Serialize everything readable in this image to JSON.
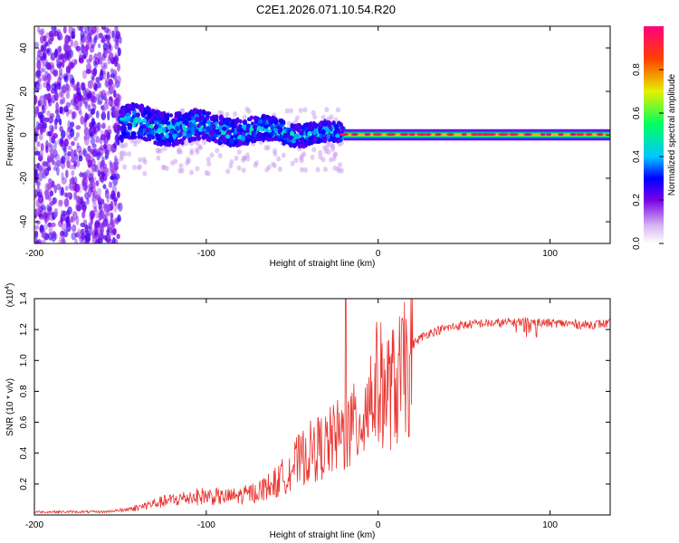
{
  "title": "C2E1.2026.071.10.54.R20",
  "colors": {
    "snr_line": "#e8332e",
    "axis": "#000000",
    "background": "#ffffff"
  },
  "chart_data": [
    {
      "type": "heatmap",
      "name": "spectrogram",
      "xlabel": "Height of straight line (km)",
      "ylabel": "Frequency (Hz)",
      "xlim": [
        -200,
        135
      ],
      "ylim": [
        -50,
        50
      ],
      "xticks": [
        {
          "value": -200,
          "label": "-200"
        },
        {
          "value": -100,
          "label": "-100"
        },
        {
          "value": 0,
          "label": "0"
        },
        {
          "value": 100,
          "label": "100"
        }
      ],
      "yticks": [
        {
          "value": -40,
          "label": "-40"
        },
        {
          "value": -20,
          "label": "-20"
        },
        {
          "value": 0,
          "label": "0"
        },
        {
          "value": 20,
          "label": "20"
        },
        {
          "value": 40,
          "label": "40"
        }
      ],
      "colorbar": {
        "label": "Normalized spectral amplitude",
        "range": [
          0,
          1
        ],
        "ticks": [
          {
            "value": 0.0,
            "label": "0.0"
          },
          {
            "value": 0.2,
            "label": "0.2"
          },
          {
            "value": 0.4,
            "label": "0.4"
          },
          {
            "value": 0.6,
            "label": "0.6"
          },
          {
            "value": 0.8,
            "label": "0.8"
          }
        ]
      },
      "regions": [
        {
          "name": "diffuse-noise",
          "x_range": [
            -200,
            -150
          ],
          "freq_halfwidth": 50,
          "amplitude": 0.1
        },
        {
          "name": "broadened-signal",
          "x_range": [
            -150,
            -20
          ],
          "freq_halfwidth": 8,
          "amplitude": 0.35
        },
        {
          "name": "narrow-carrier",
          "x_range": [
            -20,
            135
          ],
          "freq_halfwidth": 2,
          "amplitude": 0.9
        }
      ]
    },
    {
      "type": "line",
      "name": "snr",
      "xlabel": "Height of straight line (km)",
      "ylabel": "SNR (10 * v/v)",
      "y_multiplier": "(x10",
      "y_multiplier_exp": "4",
      "y_multiplier_close": ")",
      "xlim": [
        -200,
        135
      ],
      "ylim": [
        0,
        1.4
      ],
      "xticks": [
        {
          "value": -200,
          "label": "-200"
        },
        {
          "value": -100,
          "label": "-100"
        },
        {
          "value": 0,
          "label": "0"
        },
        {
          "value": 100,
          "label": "100"
        }
      ],
      "yticks": [
        {
          "value": 0.2,
          "label": "0.2"
        },
        {
          "value": 0.4,
          "label": "0.4"
        },
        {
          "value": 0.6,
          "label": "0.6"
        },
        {
          "value": 0.8,
          "label": "0.8"
        },
        {
          "value": 1.0,
          "label": "1.0"
        },
        {
          "value": 1.2,
          "label": "1.2"
        },
        {
          "value": 1.4,
          "label": "1.4"
        }
      ],
      "series": [
        {
          "name": "SNR",
          "x": [
            -200,
            -180,
            -160,
            -150,
            -140,
            -130,
            -120,
            -110,
            -100,
            -90,
            -80,
            -70,
            -60,
            -55,
            -50,
            -45,
            -40,
            -35,
            -30,
            -25,
            -20,
            -15,
            -10,
            -5,
            0,
            5,
            10,
            15,
            20,
            25,
            30,
            40,
            50,
            60,
            70,
            80,
            90,
            100,
            110,
            120,
            135
          ],
          "values": [
            0.02,
            0.02,
            0.02,
            0.03,
            0.05,
            0.08,
            0.1,
            0.12,
            0.13,
            0.12,
            0.13,
            0.16,
            0.22,
            0.28,
            0.35,
            0.4,
            0.45,
            0.48,
            0.5,
            0.55,
            0.58,
            0.62,
            0.7,
            0.85,
            0.95,
            0.9,
            0.92,
            1.02,
            1.1,
            1.15,
            1.18,
            1.21,
            1.23,
            1.24,
            1.24,
            1.25,
            1.25,
            1.24,
            1.24,
            1.23,
            1.24
          ]
        }
      ]
    }
  ]
}
